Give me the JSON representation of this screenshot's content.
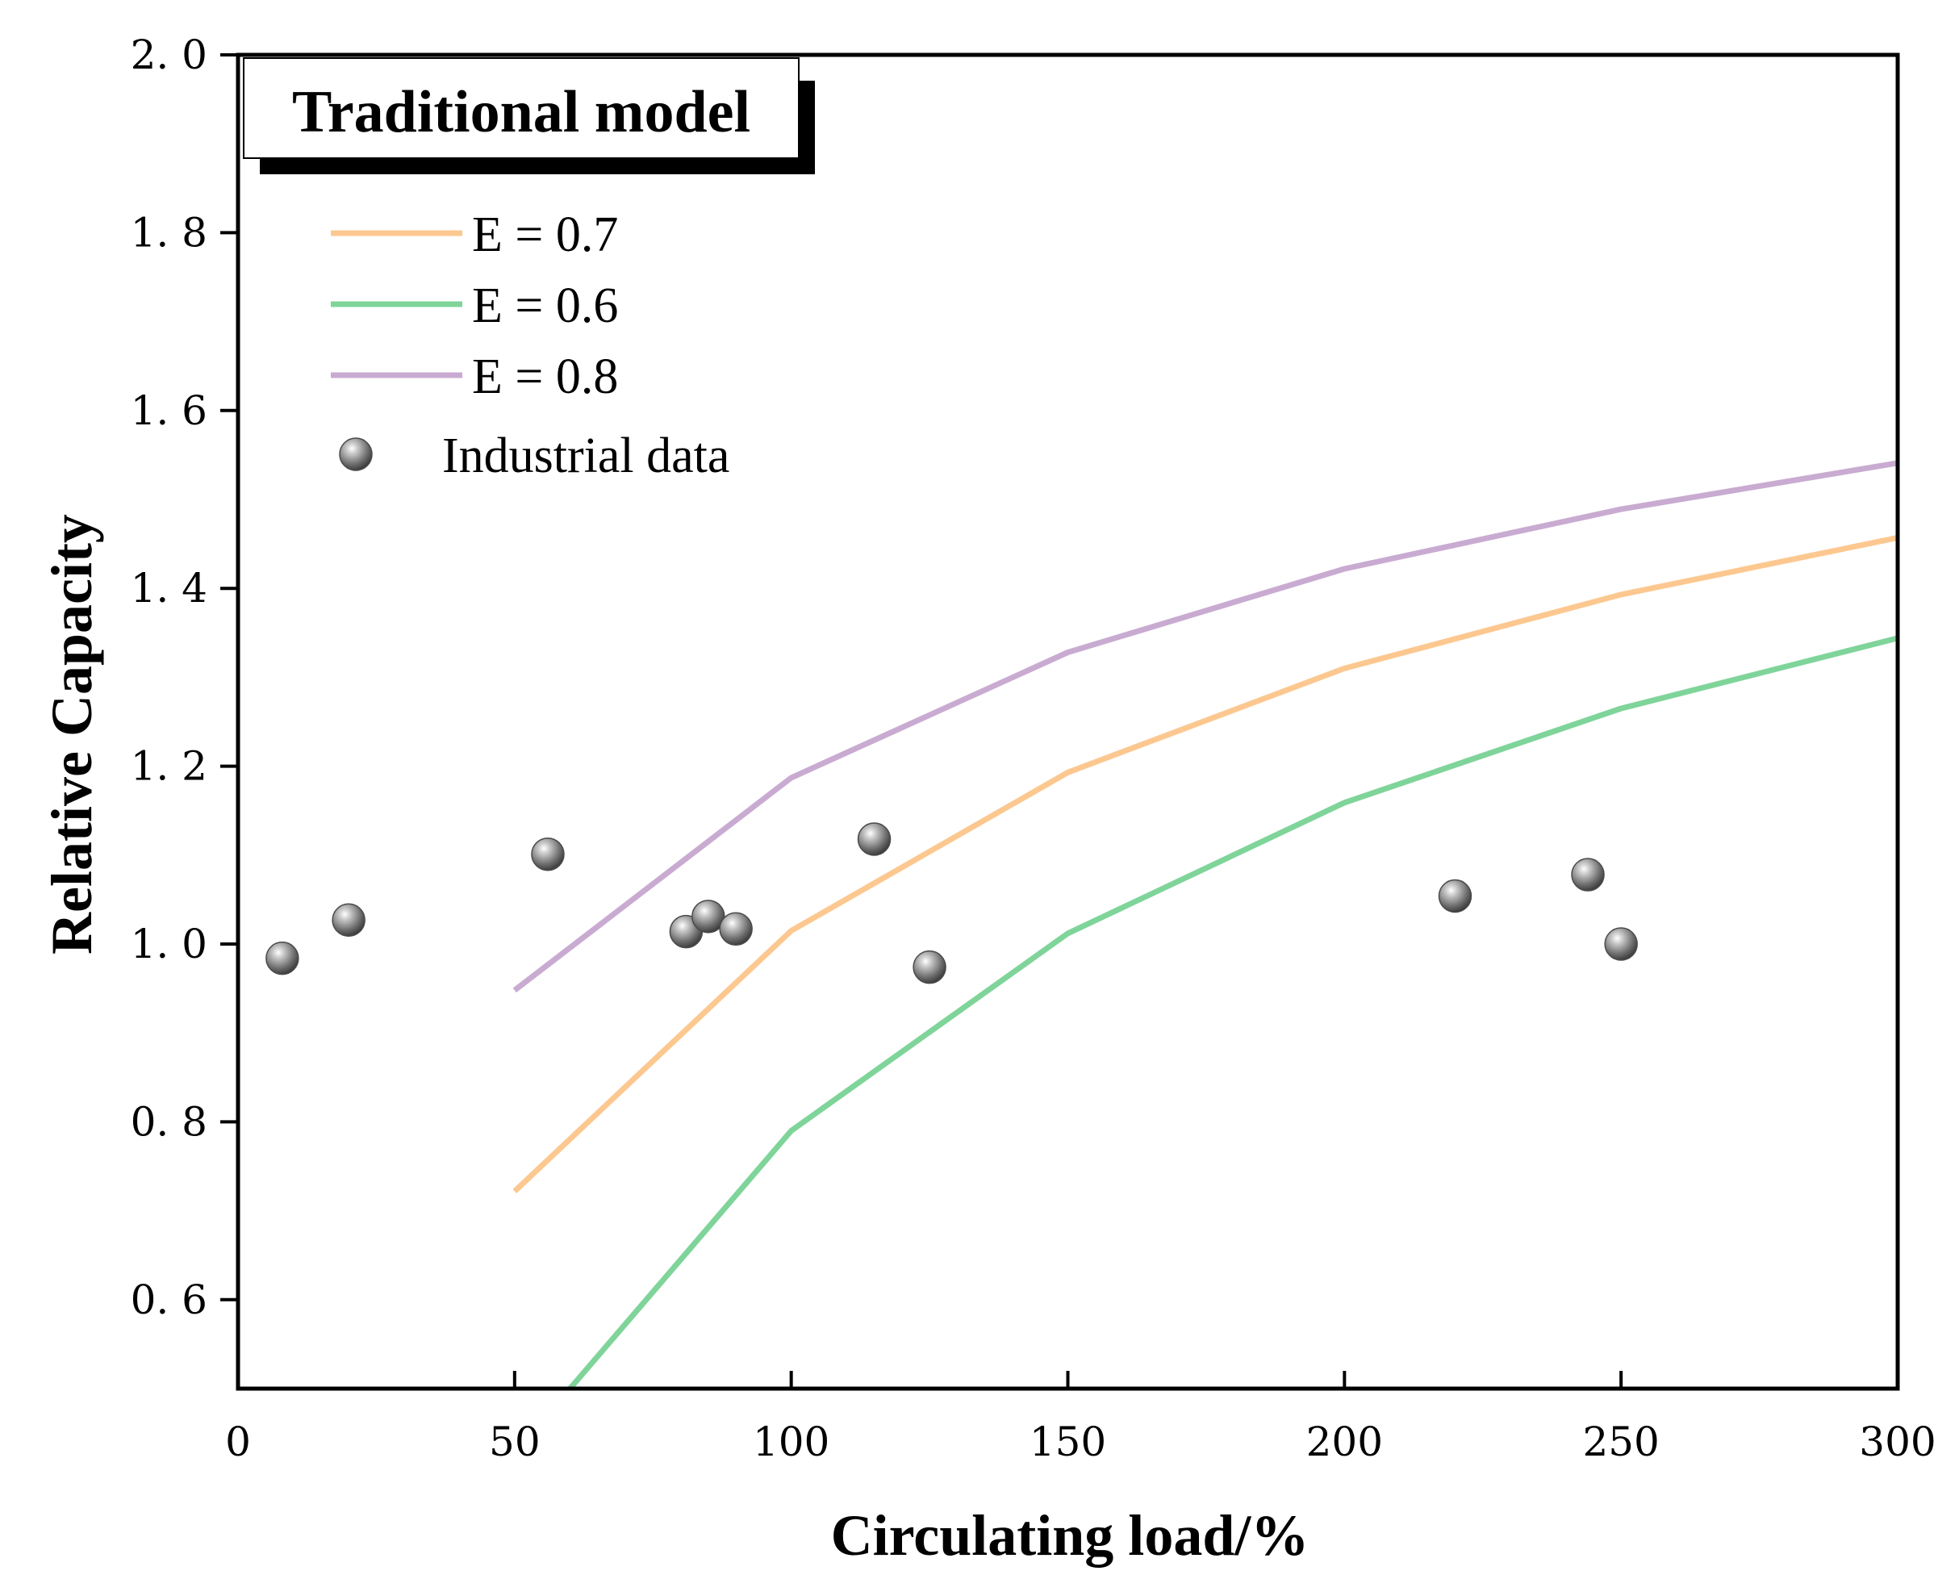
{
  "chart_data": {
    "type": "line",
    "title": "Traditional model",
    "xlabel": "Circulating load/%",
    "ylabel": "Relative Capacity",
    "xlim": [
      0,
      300
    ],
    "ylim": [
      0.5,
      2.0
    ],
    "x_ticks": [
      0,
      50,
      100,
      150,
      200,
      250,
      300
    ],
    "x_tick_labels": [
      "0",
      "50",
      "100",
      "150",
      "200",
      "250",
      "300"
    ],
    "y_ticks": [
      0.6,
      0.8,
      1.0,
      1.2,
      1.4,
      1.6,
      1.8,
      2.0
    ],
    "y_tick_labels": [
      "0. 6",
      "0. 8",
      "1. 0",
      "1. 2",
      "1. 4",
      "1. 6",
      "1. 8",
      "2. 0"
    ],
    "grid": false,
    "legend_position": "top-left",
    "series": [
      {
        "name": "E = 0.7",
        "color": "#fcc890",
        "x": [
          50,
          100,
          150,
          200,
          250,
          300
        ],
        "y": [
          0.722,
          1.015,
          1.193,
          1.31,
          1.393,
          1.457
        ]
      },
      {
        "name": "E = 0.6",
        "color": "#7fd49a",
        "x": [
          60,
          100,
          150,
          200,
          250,
          300
        ],
        "y": [
          0.5,
          0.79,
          1.012,
          1.159,
          1.265,
          1.344
        ]
      },
      {
        "name": "E = 0.8",
        "color": "#c9abd2",
        "x": [
          50,
          100,
          150,
          200,
          250,
          300
        ],
        "y": [
          0.948,
          1.187,
          1.328,
          1.422,
          1.489,
          1.541
        ]
      }
    ],
    "scatter": {
      "name": "Industrial data",
      "color": "#7a7a7a",
      "points": [
        {
          "x": 8,
          "y": 0.984
        },
        {
          "x": 20,
          "y": 1.027
        },
        {
          "x": 56,
          "y": 1.101
        },
        {
          "x": 81,
          "y": 1.014
        },
        {
          "x": 85,
          "y": 1.031
        },
        {
          "x": 90,
          "y": 1.017
        },
        {
          "x": 115,
          "y": 1.118
        },
        {
          "x": 125,
          "y": 0.974
        },
        {
          "x": 220,
          "y": 1.054
        },
        {
          "x": 244,
          "y": 1.078
        },
        {
          "x": 250,
          "y": 1.0
        }
      ]
    }
  }
}
